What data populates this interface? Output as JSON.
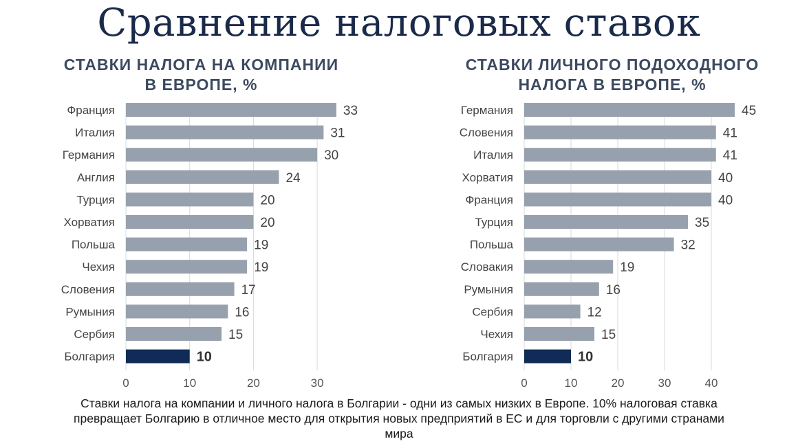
{
  "title": "Сравнение налоговых ставок",
  "colors": {
    "bar": "#97a1ae",
    "highlight": "#102b57",
    "grid": "#d9d9d9"
  },
  "chart_data": [
    {
      "type": "bar",
      "orientation": "horizontal",
      "title_line1": "СТАВКИ НАЛОГА НА КОМПАНИИ",
      "title_line2": "В ЕВРОПЕ, %",
      "categories": [
        "Франция",
        "Италия",
        "Германия",
        "Англия",
        "Турция",
        "Хорватия",
        "Польша",
        "Чехия",
        "Словения",
        "Румыния",
        "Сербия",
        "Болгария"
      ],
      "values": [
        33,
        31,
        30,
        24,
        20,
        20,
        19,
        19,
        17,
        16,
        15,
        10
      ],
      "highlight": "Болгария",
      "xlim": [
        0,
        33
      ],
      "xticks": [
        0,
        10,
        20,
        30
      ],
      "grid": true
    },
    {
      "type": "bar",
      "orientation": "horizontal",
      "title_line1": "СТАВКИ ЛИЧНОГО ПОДОХОДНОГО",
      "title_line2": "НАЛОГА В ЕВРОПЕ, %",
      "categories": [
        "Германия",
        "Словения",
        "Италия",
        "Хорватия",
        "Франция",
        "Турция",
        "Польша",
        "Словакия",
        "Румыния",
        "Сербия",
        "Чехия",
        "Болгария"
      ],
      "values": [
        45,
        41,
        41,
        40,
        40,
        35,
        32,
        19,
        16,
        12,
        15,
        10
      ],
      "highlight": "Болгария",
      "xlim": [
        0,
        45
      ],
      "xticks": [
        0,
        10,
        20,
        30,
        40
      ],
      "grid": true
    }
  ],
  "caption_line1": "Ставки налога на компании и личного налога в Болгарии - одни из самых низких в Европе. 10% налоговая ставка",
  "caption_line2": "превращает Болгарию в отличное место для открытия новых предприятий в ЕС и для торговли с другими странами",
  "caption_line3": "мира"
}
